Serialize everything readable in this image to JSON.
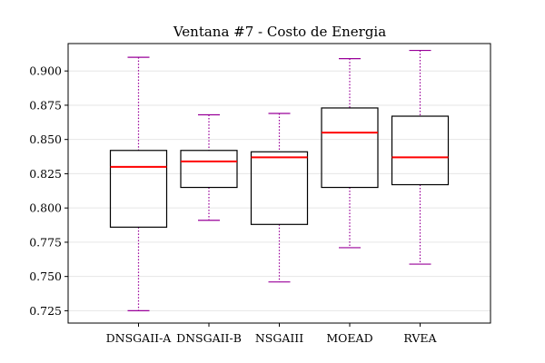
{
  "chart_data": {
    "type": "box",
    "title": "Ventana #7 - Costo de Energia",
    "xlabel": "",
    "ylabel": "",
    "ylim": [
      0.716,
      0.92
    ],
    "yticks": [
      0.725,
      0.75,
      0.775,
      0.8,
      0.825,
      0.85,
      0.875,
      0.9
    ],
    "ytick_labels": [
      "0.725",
      "0.750",
      "0.775",
      "0.800",
      "0.825",
      "0.850",
      "0.875",
      "0.900"
    ],
    "grid": "horizontal",
    "categories": [
      "DNSGAII-A",
      "DNSGAII-B",
      "NSGAIII",
      "MOEAD",
      "RVEA"
    ],
    "boxes": [
      {
        "category": "DNSGAII-A",
        "whisker_low": 0.725,
        "q1": 0.786,
        "median": 0.83,
        "q3": 0.842,
        "whisker_high": 0.91
      },
      {
        "category": "DNSGAII-B",
        "whisker_low": 0.791,
        "q1": 0.815,
        "median": 0.834,
        "q3": 0.842,
        "whisker_high": 0.868
      },
      {
        "category": "NSGAIII",
        "whisker_low": 0.746,
        "q1": 0.788,
        "median": 0.837,
        "q3": 0.841,
        "whisker_high": 0.869
      },
      {
        "category": "MOEAD",
        "whisker_low": 0.771,
        "q1": 0.815,
        "median": 0.855,
        "q3": 0.873,
        "whisker_high": 0.909
      },
      {
        "category": "RVEA",
        "whisker_low": 0.759,
        "q1": 0.817,
        "median": 0.837,
        "q3": 0.867,
        "whisker_high": 0.915
      }
    ],
    "colors": {
      "box": "#000000",
      "median": "#ff0000",
      "whisker": "#990099",
      "grid": "#e6e6e6"
    }
  }
}
